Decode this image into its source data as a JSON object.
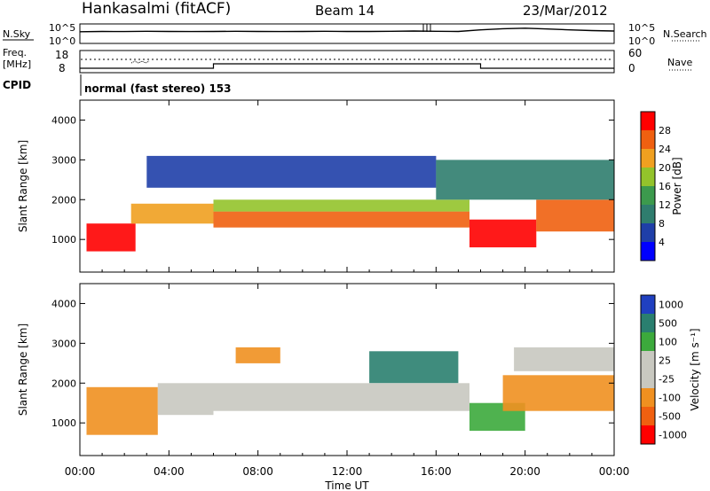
{
  "header": {
    "station": "Hankasalmi (fitACF)",
    "beam": "Beam 14",
    "date": "23/Mar/2012"
  },
  "noise_panel": {
    "left_label": "N.Sky",
    "right_label": "N.Search",
    "left_ticks": [
      "10^5",
      "10^0"
    ],
    "right_ticks": [
      "10^5",
      "10^0"
    ]
  },
  "freq_panel": {
    "left_label_1": "Freq.",
    "left_label_2": "[MHz]",
    "right_label": "Nave",
    "left_ticks": [
      "18",
      "8"
    ],
    "right_ticks": [
      "60",
      "0"
    ]
  },
  "cpid": {
    "label": "CPID",
    "mode": "normal (fast stereo) 153"
  },
  "power_panel": {
    "ylabel": "Slant Range [km]",
    "colorbar_label": "Power [dB]"
  },
  "velocity_panel": {
    "ylabel": "Slant Range [km]",
    "colorbar_label": "Velocity [m s⁻¹]"
  },
  "xaxis": {
    "label": "Time UT"
  },
  "chart_data": [
    {
      "type": "line",
      "title": "Hankasalmi (fitACF)",
      "series": [
        {
          "name": "N.Sky",
          "x": [
            0,
            1,
            2,
            3,
            4,
            5,
            6,
            7,
            8,
            9,
            10,
            11,
            12,
            13,
            14,
            15,
            16,
            17,
            18,
            19,
            20,
            21,
            22,
            23,
            24
          ],
          "y": [
            1000,
            1200,
            1100,
            1300,
            1200,
            1100,
            1200,
            1300,
            1200,
            1100,
            1200,
            1300,
            1200,
            1200,
            1300,
            1500,
            1300,
            1200,
            3000,
            6000,
            8000,
            5000,
            3000,
            2000,
            1500
          ]
        }
      ],
      "x_range": [
        0,
        24
      ],
      "y_range": [
        1,
        100000
      ],
      "y_scale": "log"
    },
    {
      "type": "line",
      "series": [
        {
          "name": "Freq.",
          "x": [
            0,
            6,
            6,
            18,
            18,
            24
          ],
          "y": [
            10,
            10,
            12,
            12,
            10,
            10
          ]
        }
      ],
      "x_range": [
        0,
        24
      ],
      "y_range": [
        8,
        18
      ]
    },
    {
      "type": "heatmap",
      "ylabel": "Slant Range [km]",
      "colorbar_label": "Power [dB]",
      "colorbar_ticks": [
        4,
        8,
        12,
        16,
        20,
        24,
        28
      ],
      "x_ticks": [
        "00:00",
        "04:00",
        "08:00",
        "12:00",
        "16:00",
        "20:00",
        "00:00"
      ],
      "y_ticks": [
        1000,
        2000,
        3000,
        4000
      ],
      "x_range": [
        0,
        24
      ],
      "y_range": [
        180,
        4500
      ],
      "colors": [
        "#0000ff",
        "#1f3fa8",
        "#2f7d6e",
        "#3c9a4d",
        "#93c32b",
        "#f0a020",
        "#f06010",
        "#ff0000"
      ],
      "regions": [
        {
          "t0": 0.3,
          "t1": 2.5,
          "r0": 700,
          "r1": 1400,
          "level": 7
        },
        {
          "t0": 2.3,
          "t1": 6.0,
          "r0": 1400,
          "r1": 1900,
          "level": 5
        },
        {
          "t0": 6.0,
          "t1": 17.5,
          "r0": 1700,
          "r1": 2000,
          "level": 4
        },
        {
          "t0": 6.0,
          "t1": 17.5,
          "r0": 1300,
          "r1": 1700,
          "level": 6
        },
        {
          "t0": 17.5,
          "t1": 20.5,
          "r0": 800,
          "r1": 1500,
          "level": 7
        },
        {
          "t0": 20.5,
          "t1": 24.0,
          "r0": 1200,
          "r1": 2000,
          "level": 6
        },
        {
          "t0": 3.0,
          "t1": 16.0,
          "r0": 2300,
          "r1": 3100,
          "level": 1
        },
        {
          "t0": 16.0,
          "t1": 24.0,
          "r0": 2000,
          "r1": 3000,
          "level": 2
        }
      ]
    },
    {
      "type": "heatmap",
      "ylabel": "Slant Range [km]",
      "colorbar_label": "Velocity [m s⁻¹]",
      "colorbar_ticks": [
        1000,
        500,
        100,
        25,
        -25,
        -100,
        -500,
        -1000
      ],
      "x_ticks": [
        "00:00",
        "04:00",
        "08:00",
        "12:00",
        "16:00",
        "20:00",
        "00:00"
      ],
      "y_ticks": [
        1000,
        2000,
        3000,
        4000
      ],
      "x_range": [
        0,
        24
      ],
      "y_range": [
        180,
        4500
      ],
      "colors": [
        "#2040c0",
        "#2a7f6f",
        "#3caa3c",
        "#c8c8c0",
        "#c8c8c0",
        "#f09020",
        "#f06010",
        "#ff0000"
      ],
      "regions": [
        {
          "t0": 0.3,
          "t1": 3.5,
          "r0": 700,
          "r1": 1900,
          "level": 5
        },
        {
          "t0": 3.5,
          "t1": 6.0,
          "r0": 1200,
          "r1": 2000,
          "level": 3
        },
        {
          "t0": 6.0,
          "t1": 17.5,
          "r0": 1300,
          "r1": 2000,
          "level": 3
        },
        {
          "t0": 17.5,
          "t1": 20.0,
          "r0": 800,
          "r1": 1500,
          "level": 2
        },
        {
          "t0": 19.0,
          "t1": 24.0,
          "r0": 1300,
          "r1": 2200,
          "level": 5
        },
        {
          "t0": 19.5,
          "t1": 24.0,
          "r0": 2300,
          "r1": 2900,
          "level": 3
        },
        {
          "t0": 7.0,
          "t1": 9.0,
          "r0": 2500,
          "r1": 2900,
          "level": 5
        },
        {
          "t0": 13.0,
          "t1": 17.0,
          "r0": 2000,
          "r1": 2800,
          "level": 1
        }
      ]
    }
  ]
}
